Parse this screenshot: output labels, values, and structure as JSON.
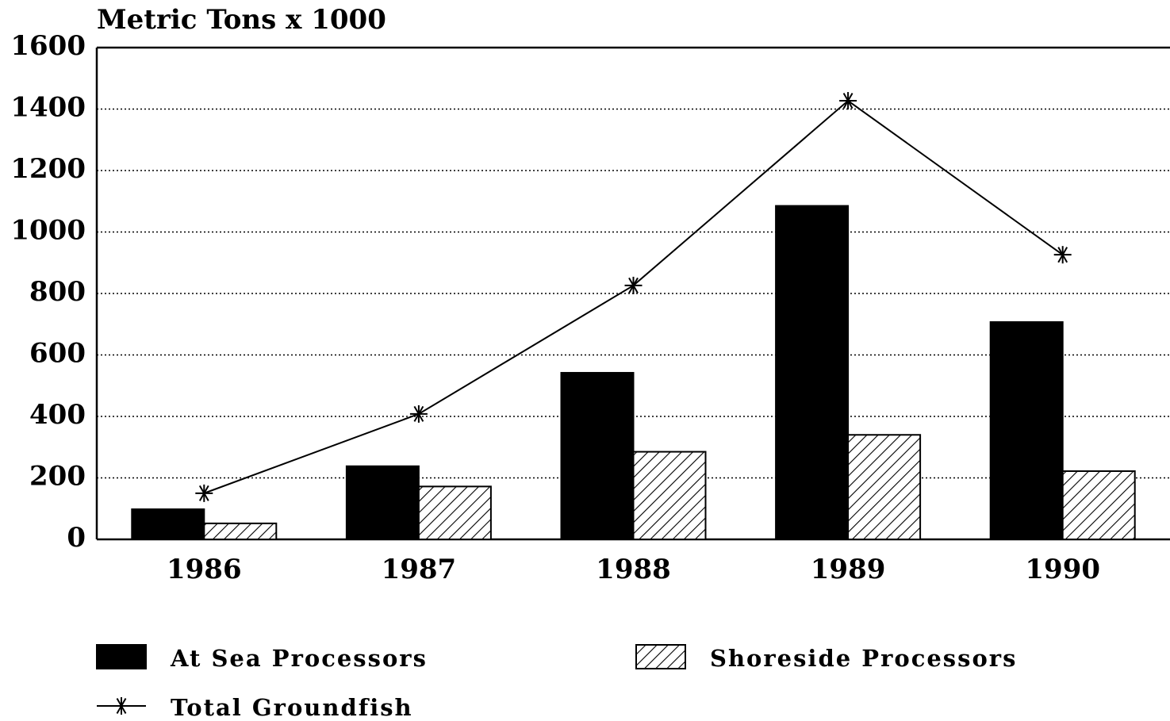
{
  "chart_data": {
    "type": "bar_line",
    "title": "Metric Tons x 1000",
    "categories": [
      "1986",
      "1987",
      "1988",
      "1989",
      "1990"
    ],
    "series": [
      {
        "name": "At Sea Processors",
        "type": "bar",
        "color": "#000000",
        "hatch": false,
        "values": [
          98,
          238,
          542,
          1085,
          707
        ]
      },
      {
        "name": "Shoreside Processors",
        "type": "bar",
        "color": "#000000",
        "hatch": true,
        "values": [
          52,
          172,
          285,
          340,
          222
        ]
      },
      {
        "name": "Total Groundfish",
        "type": "line",
        "color": "#000000",
        "marker": "asterisk",
        "values": [
          150,
          408,
          826,
          1427,
          926
        ]
      }
    ],
    "ylim": [
      0,
      1600
    ],
    "yticks": [
      0,
      200,
      400,
      600,
      800,
      1000,
      1200,
      1400,
      1600
    ],
    "grid": true
  }
}
